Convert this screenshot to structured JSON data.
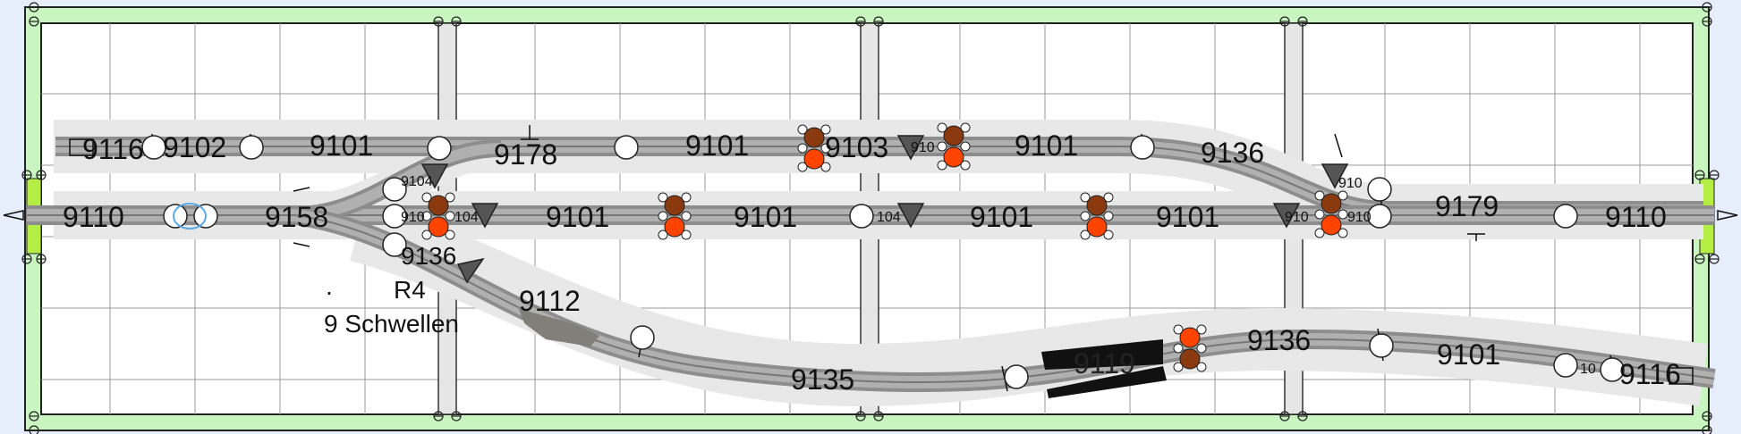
{
  "labels": {
    "l_9116_top": "9116",
    "l_9102": "9102",
    "l_9101_t1": "9101",
    "l_9178": "9178",
    "l_9101_t2": "9101",
    "l_9103": "9103",
    "l_910_small_top": "910",
    "l_9101_t3": "9101",
    "l_9136_top": "9136",
    "l_910_small_top2": "910",
    "l_9110_left": "9110",
    "l_9158": "9158",
    "l_9104_small": "9104",
    "l_910_small_mid": "910",
    "l_104_small": "104",
    "l_9101_m1": "9101",
    "l_9101_m2": "9101",
    "l_104_small2": "104",
    "l_9101_m3": "9101",
    "l_9101_m4": "9101",
    "l_910_small_mid2": "910",
    "l_910_small_mid3": "910",
    "l_9179": "9179",
    "l_9110_right": "9110",
    "l_9136_low": "9136",
    "l_r4": "R4",
    "l_schwellen": "9 Schwellen",
    "l_dot": ".",
    "l_9112": "9112",
    "l_9135": "9135",
    "l_9119": "9119",
    "l_9136_bottom": "9136",
    "l_9101_bottom": "9101",
    "l_10_small": "10",
    "l_9116_bottom": "9116"
  },
  "colors": {
    "background": "#e6eefb",
    "frame": "#c8f5c0",
    "board": "#ffffff",
    "grid": "#999999",
    "bed": "#e8e8e8",
    "rail": "#8d8d8d",
    "rail_core": "#b0b0b0",
    "joint": "#ffffff",
    "signal_red": "#ff4400",
    "signal_brown": "#8b3a10",
    "buffer_green": "#b4ee44",
    "triangle": "#555555"
  }
}
